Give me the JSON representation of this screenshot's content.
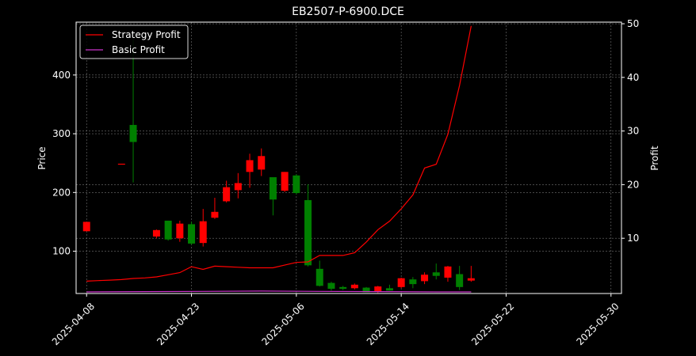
{
  "chart_data": {
    "type": "candlestick",
    "title": "EB2507-P-6900.DCE",
    "ylabel_left": "Price",
    "ylabel_right": "Profit",
    "grid": true,
    "legend_placement": "top-left",
    "colors": {
      "background": "#000000",
      "text": "#ffffff",
      "up": "#ff0000",
      "down": "#008000",
      "strategy_line": "#ff0000",
      "basic_line": "#cc33cc",
      "grid": "#808080"
    },
    "left_axis": {
      "ylim": [
        28,
        490
      ],
      "ticks": [
        100,
        200,
        300,
        400
      ]
    },
    "right_axis": {
      "ylim": [
        -0.3,
        50.3
      ],
      "ticks": [
        10,
        20,
        30,
        40,
        50
      ]
    },
    "x_ticks": [
      {
        "index": 0,
        "label": "2025-04-08"
      },
      {
        "index": 9,
        "label": "2025-04-23"
      },
      {
        "index": 18,
        "label": "2025-05-06"
      },
      {
        "index": 27,
        "label": "2025-05-14"
      },
      {
        "index": 36,
        "label": "2025-05-22"
      },
      {
        "index": 45,
        "label": "2025-05-30"
      }
    ],
    "x_range": [
      -0.9,
      45.9
    ],
    "candles": [
      {
        "o": 134,
        "h": 150,
        "l": 134,
        "c": 150
      },
      {
        "o": 0,
        "h": 0,
        "l": 0,
        "c": 0
      },
      {
        "o": 249,
        "h": 249,
        "l": 249,
        "c": 249
      },
      {
        "o": 315,
        "h": 460,
        "l": 217,
        "c": 286
      },
      {
        "o": 0,
        "h": 0,
        "l": 0,
        "c": 0
      },
      {
        "o": 125,
        "h": 137,
        "l": 122,
        "c": 136
      },
      {
        "o": 152,
        "h": 152,
        "l": 118,
        "c": 120
      },
      {
        "o": 122,
        "h": 152,
        "l": 116,
        "c": 147
      },
      {
        "o": 146,
        "h": 150,
        "l": 111,
        "c": 113
      },
      {
        "o": 114,
        "h": 172,
        "l": 108,
        "c": 151
      },
      {
        "o": 157,
        "h": 191,
        "l": 155,
        "c": 167
      },
      {
        "o": 185,
        "h": 220,
        "l": 183,
        "c": 209
      },
      {
        "o": 204,
        "h": 233,
        "l": 190,
        "c": 216
      },
      {
        "o": 235,
        "h": 266,
        "l": 208,
        "c": 255
      },
      {
        "o": 239,
        "h": 275,
        "l": 228,
        "c": 262
      },
      {
        "o": 226,
        "h": 226,
        "l": 161,
        "c": 188
      },
      {
        "o": 203,
        "h": 235,
        "l": 201,
        "c": 235
      },
      {
        "o": 229,
        "h": 231,
        "l": 197,
        "c": 199
      },
      {
        "o": 187,
        "h": 214,
        "l": 74,
        "c": 76
      },
      {
        "o": 70,
        "h": 84,
        "l": 40,
        "c": 41
      },
      {
        "o": 46,
        "h": 48,
        "l": 33,
        "c": 36
      },
      {
        "o": 39,
        "h": 41,
        "l": 34,
        "c": 36
      },
      {
        "o": 37,
        "h": 45,
        "l": 35,
        "c": 43
      },
      {
        "o": 38,
        "h": 39,
        "l": 30,
        "c": 30
      },
      {
        "o": 31,
        "h": 41,
        "l": 29,
        "c": 40
      },
      {
        "o": 37,
        "h": 43,
        "l": 33,
        "c": 33
      },
      {
        "o": 39,
        "h": 55,
        "l": 37,
        "c": 54
      },
      {
        "o": 52,
        "h": 56,
        "l": 37,
        "c": 44
      },
      {
        "o": 49,
        "h": 64,
        "l": 44,
        "c": 60
      },
      {
        "o": 64,
        "h": 79,
        "l": 52,
        "c": 58
      },
      {
        "o": 55,
        "h": 75,
        "l": 48,
        "c": 74
      },
      {
        "o": 61,
        "h": 75,
        "l": 34,
        "c": 39
      },
      {
        "o": 50,
        "h": 75,
        "l": 48,
        "c": 54
      }
    ],
    "candle_index": [
      0,
      1,
      3,
      4,
      5,
      6,
      7,
      8,
      9,
      10,
      11,
      12,
      13,
      14,
      15,
      16,
      17,
      18,
      19,
      20,
      21,
      22,
      23,
      24,
      25,
      26,
      27,
      28,
      29,
      30,
      31,
      32,
      33
    ],
    "series": [
      {
        "name": "Strategy Profit",
        "x": [
          0,
          1,
          2,
          3,
          4,
          5,
          6,
          7,
          8,
          9,
          10,
          11,
          12,
          13,
          14,
          15,
          16,
          17,
          18,
          19,
          20,
          21,
          22,
          23,
          24,
          25,
          26,
          27,
          28,
          29,
          30,
          31,
          32,
          33
        ],
        "values": [
          2.0,
          2.1,
          2.2,
          2.3,
          2.5,
          2.6,
          2.8,
          3.2,
          3.6,
          4.7,
          4.2,
          4.8,
          4.7,
          4.6,
          4.5,
          4.5,
          4.5,
          5.0,
          5.5,
          5.6,
          6.8,
          6.8,
          6.8,
          7.3,
          9.3,
          11.6,
          13.2,
          15.5,
          18.1,
          23.1,
          23.8,
          29.4,
          38.5,
          49.6
        ]
      },
      {
        "name": "Basic Profit",
        "x": [
          0,
          5,
          10,
          15,
          20,
          25,
          30,
          33
        ],
        "values": [
          0.0,
          0.05,
          0.1,
          0.15,
          0.1,
          0.05,
          0.0,
          0.0
        ]
      }
    ]
  }
}
